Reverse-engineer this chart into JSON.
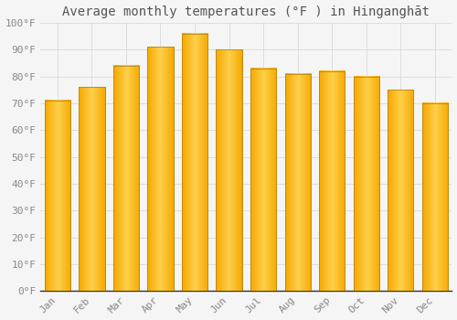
{
  "title": "Average monthly temperatures (°F ) in Hinganghāt",
  "months": [
    "Jan",
    "Feb",
    "Mar",
    "Apr",
    "May",
    "Jun",
    "Jul",
    "Aug",
    "Sep",
    "Oct",
    "Nov",
    "Dec"
  ],
  "values": [
    71,
    76,
    84,
    91,
    96,
    90,
    83,
    81,
    82,
    80,
    75,
    70
  ],
  "bar_color_center": "#FFD04A",
  "bar_color_edge": "#F5A800",
  "bar_outline": "#B8860B",
  "background_color": "#F5F5F5",
  "grid_color": "#DDDDDD",
  "ylim": [
    0,
    100
  ],
  "yticks": [
    0,
    10,
    20,
    30,
    40,
    50,
    60,
    70,
    80,
    90,
    100
  ],
  "ytick_labels": [
    "0°F",
    "10°F",
    "20°F",
    "30°F",
    "40°F",
    "50°F",
    "60°F",
    "70°F",
    "80°F",
    "90°F",
    "100°F"
  ],
  "title_fontsize": 10,
  "tick_fontsize": 8,
  "font_color": "#888888",
  "title_color": "#555555",
  "bar_width": 0.75
}
